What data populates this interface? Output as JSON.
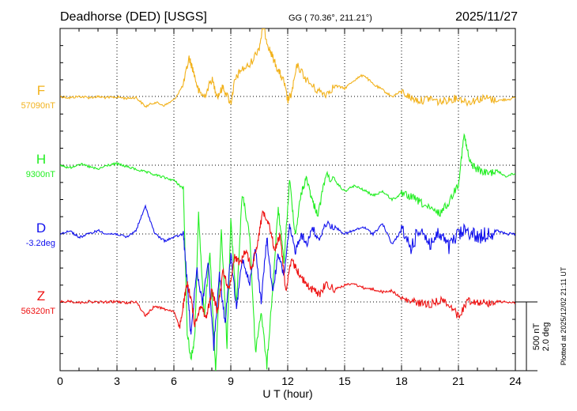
{
  "header": {
    "station": "Deadhorse (DED)  [USGS]",
    "coords": "GG ( 70.36°, 211.21°)",
    "date": "2025/11/27"
  },
  "footer": {
    "xlabel": "U T (hour)",
    "side_note": "Plotted at 2025/12/02 21:11 UT",
    "scale_nt": "500 nT",
    "scale_deg": "2.0 deg"
  },
  "chart_data": {
    "type": "line",
    "x_ticks": [
      "0",
      "3",
      "6",
      "9",
      "12",
      "15",
      "18",
      "21",
      "24"
    ],
    "xlim": [
      0,
      24
    ],
    "grid": true,
    "series": [
      {
        "name": "F",
        "baseline_label": "57090nT",
        "color": "#f2b21c",
        "x": [
          0,
          0.5,
          1,
          1.5,
          2,
          2.5,
          3,
          3.5,
          4,
          4.5,
          5,
          5.5,
          6,
          6.5,
          6.8,
          7,
          7.3,
          7.6,
          8,
          8.3,
          8.6,
          9,
          9.2,
          9.5,
          10,
          10.5,
          10.7,
          11,
          11.2,
          11.5,
          11.8,
          12,
          12.2,
          12.5,
          13,
          13.5,
          14,
          14.5,
          15,
          15.5,
          16,
          16.5,
          17,
          17.5,
          18,
          18.5,
          19,
          19.5,
          20,
          20.5,
          21,
          21.5,
          22,
          22.5,
          23,
          23.5,
          24
        ],
        "values": [
          57094,
          57084,
          57094,
          57086,
          57092,
          57084,
          57090,
          57080,
          57087,
          57020,
          57052,
          57028,
          57068,
          57178,
          57375,
          57292,
          57132,
          57092,
          57220,
          57096,
          57164,
          57042,
          57202,
          57282,
          57322,
          57452,
          57602,
          57452,
          57382,
          57282,
          57202,
          57062,
          57112,
          57322,
          57212,
          57142,
          57112,
          57172,
          57152,
          57212,
          57252,
          57182,
          57142,
          57092,
          57132,
          57082,
          57062,
          57082,
          57052,
          57072,
          57082,
          57052,
          57072,
          57082,
          57062,
          57072,
          57082
        ]
      },
      {
        "name": "H",
        "baseline_label": "9300nT",
        "color": "#22ee22",
        "x": [
          0,
          0.5,
          1,
          1.5,
          2,
          2.5,
          3,
          3.5,
          4,
          4.5,
          5,
          5.5,
          6,
          6.5,
          6.7,
          6.9,
          7.1,
          7.3,
          7.6,
          7.9,
          8.2,
          8.5,
          8.8,
          9,
          9.3,
          9.6,
          10,
          10.3,
          10.6,
          10.9,
          11.2,
          11.5,
          11.8,
          12.1,
          12.4,
          12.7,
          13,
          13.3,
          13.6,
          14,
          14.5,
          15,
          15.5,
          16,
          16.5,
          17,
          17.5,
          18,
          18.5,
          19,
          19.5,
          20,
          20.5,
          21,
          21.3,
          21.6,
          22,
          22.5,
          23,
          23.5,
          24
        ],
        "values": [
          9412,
          9392,
          9422,
          9402,
          9382,
          9412,
          9422,
          9402,
          9382,
          9362,
          9342,
          9322,
          9302,
          9242,
          8202,
          8002,
          8152,
          9052,
          8302,
          8802,
          7902,
          8952,
          8102,
          9002,
          8402,
          9202,
          8902,
          8052,
          8352,
          7952,
          8502,
          9102,
          8702,
          9302,
          8902,
          9202,
          9322,
          9152,
          9052,
          9342,
          9292,
          9222,
          9262,
          9232,
          9192,
          9222,
          9162,
          9202,
          9182,
          9142,
          9092,
          9062,
          9142,
          9282,
          9632,
          9432,
          9382,
          9352,
          9372,
          9332,
          9352
        ]
      },
      {
        "name": "D",
        "baseline_label": "-3.2deg",
        "color": "#1111ee",
        "x": [
          0,
          0.5,
          1,
          1.5,
          2,
          2.5,
          3,
          3.5,
          4,
          4.5,
          5,
          5.5,
          6,
          6.5,
          6.7,
          6.9,
          7.2,
          7.5,
          7.8,
          8.1,
          8.4,
          8.7,
          9,
          9.3,
          9.6,
          10,
          10.3,
          10.6,
          10.9,
          11.2,
          11.5,
          11.8,
          12.1,
          12.4,
          12.7,
          13,
          13.3,
          13.6,
          14,
          14.5,
          15,
          15.5,
          16,
          16.5,
          17,
          17.5,
          18,
          18.5,
          19,
          19.5,
          20,
          20.5,
          21,
          21.5,
          22,
          22.5,
          23,
          23.5,
          24
        ],
        "values": [
          -3.2,
          -3.1,
          -3.3,
          -3.2,
          -3.1,
          -3.2,
          -3.2,
          -3.3,
          -3.1,
          -2.4,
          -3.2,
          -3.4,
          -3.3,
          -3.2,
          -4.6,
          -6.2,
          -4.2,
          -5.2,
          -4.0,
          -6.5,
          -4.4,
          -5.8,
          -3.8,
          -5.4,
          -3.9,
          -4.6,
          -3.6,
          -5.2,
          -3.3,
          -4.9,
          -3.8,
          -4.4,
          -3.0,
          -3.7,
          -3.2,
          -3.5,
          -3.0,
          -3.4,
          -2.9,
          -3.0,
          -3.2,
          -3.1,
          -3.0,
          -3.2,
          -2.9,
          -3.5,
          -3.1,
          -3.6,
          -3.0,
          -3.5,
          -3.2,
          -3.6,
          -3.2,
          -3.1,
          -3.3,
          -3.2,
          -3.1,
          -3.2,
          -3.2
        ]
      },
      {
        "name": "Z",
        "baseline_label": "56320nT",
        "color": "#ee1111",
        "x": [
          0,
          0.5,
          1,
          1.5,
          2,
          2.5,
          3,
          3.5,
          4,
          4.5,
          5,
          5.5,
          6,
          6.3,
          6.5,
          6.7,
          6.9,
          7.1,
          7.4,
          7.7,
          8,
          8.3,
          8.6,
          8.9,
          9.2,
          9.5,
          9.8,
          10.1,
          10.4,
          10.7,
          11,
          11.3,
          11.6,
          11.9,
          12.2,
          12.5,
          12.8,
          13.1,
          13.4,
          13.7,
          14,
          14.5,
          15,
          15.5,
          16,
          16.5,
          17,
          17.5,
          18,
          18.5,
          19,
          19.5,
          20,
          20.5,
          21,
          21.5,
          22,
          22.5,
          23,
          23.5,
          24
        ],
        "values": [
          56320,
          56325,
          56315,
          56322,
          56318,
          56320,
          56322,
          56312,
          56325,
          56218,
          56292,
          56268,
          56252,
          56132,
          56302,
          56452,
          56352,
          56152,
          56302,
          56202,
          56402,
          56252,
          56552,
          56402,
          56652,
          56602,
          56702,
          56552,
          56752,
          56982,
          56902,
          56702,
          56802,
          56402,
          56622,
          56552,
          56482,
          56432,
          56402,
          56382,
          56452,
          56412,
          56442,
          56452,
          56422,
          56412,
          56392,
          56402,
          56342,
          56322,
          56312,
          56302,
          56332,
          56312,
          56212,
          56332,
          56322,
          56312,
          56322,
          56322,
          56312
        ]
      }
    ]
  }
}
